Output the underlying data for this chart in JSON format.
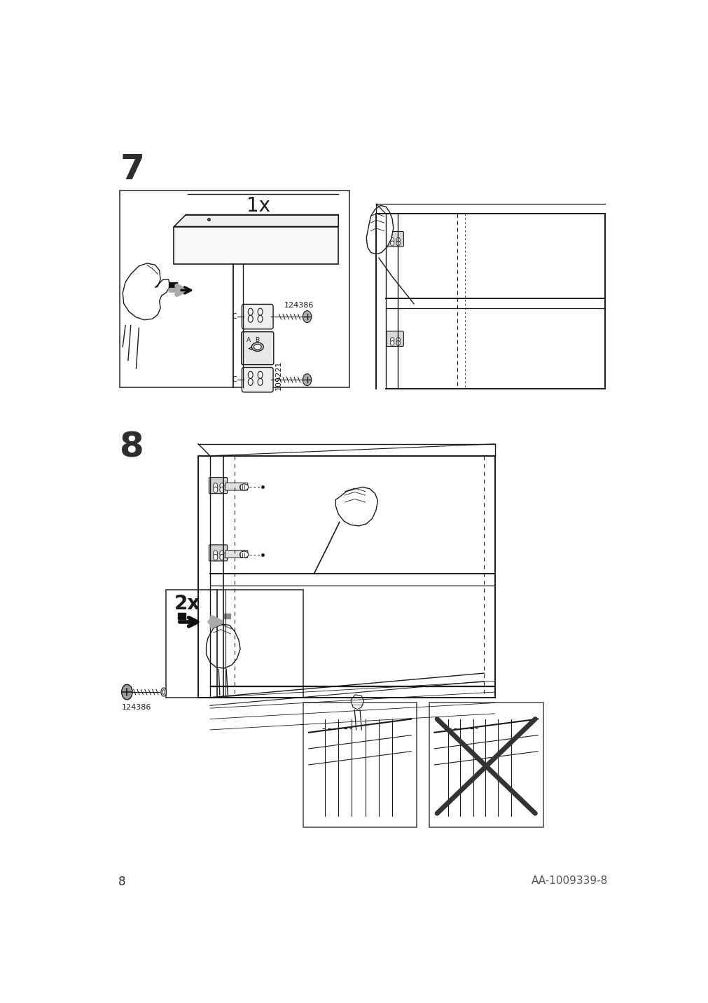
{
  "page_number": "8",
  "doc_ref": "AA-1009339-8",
  "step7_label": "7",
  "step8_label": "8",
  "quantity7": "1x",
  "quantity8": "2x",
  "part_code1": "124386",
  "part_code2": "109221",
  "part_code3": "124386",
  "bg_color": "#ffffff",
  "line_color": "#1a1a1a",
  "step_num_color": "#2d2d2d",
  "font_size_step": 36,
  "font_size_qty": 20,
  "font_size_part": 8,
  "font_size_page": 11
}
